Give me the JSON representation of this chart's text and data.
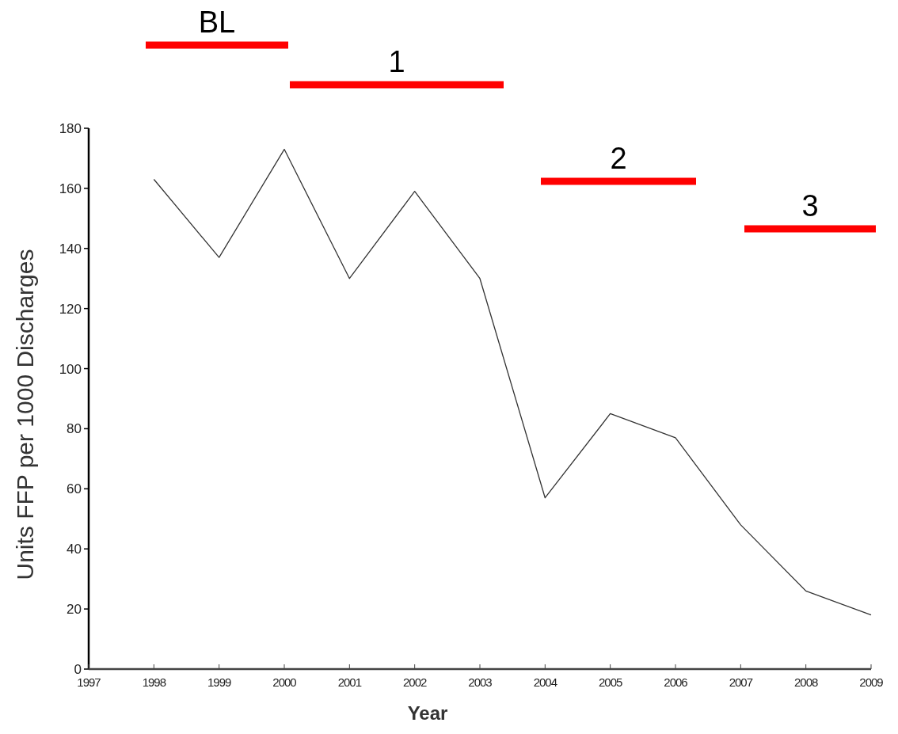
{
  "chart_data": {
    "type": "line",
    "xlabel": "Year",
    "ylabel": "Units FFP per 1000 Discharges",
    "x": [
      1998,
      1999,
      2000,
      2001,
      2002,
      2003,
      2004,
      2005,
      2006,
      2007,
      2008,
      2009
    ],
    "series": [
      {
        "color": "#333333",
        "values": [
          163,
          137,
          173,
          130,
          159,
          130,
          57,
          85,
          77,
          48,
          26,
          18
        ]
      }
    ],
    "xlim": [
      1997,
      2009
    ],
    "xticks": [
      1997,
      1998,
      1999,
      2000,
      2001,
      2002,
      2003,
      2004,
      2005,
      2006,
      2007,
      2008,
      2009
    ],
    "ylim": [
      0,
      180
    ],
    "yticks": [
      0,
      20,
      40,
      60,
      80,
      100,
      120,
      140,
      160,
      180
    ],
    "annotations": [
      "BL",
      "1",
      "2",
      "3"
    ]
  }
}
